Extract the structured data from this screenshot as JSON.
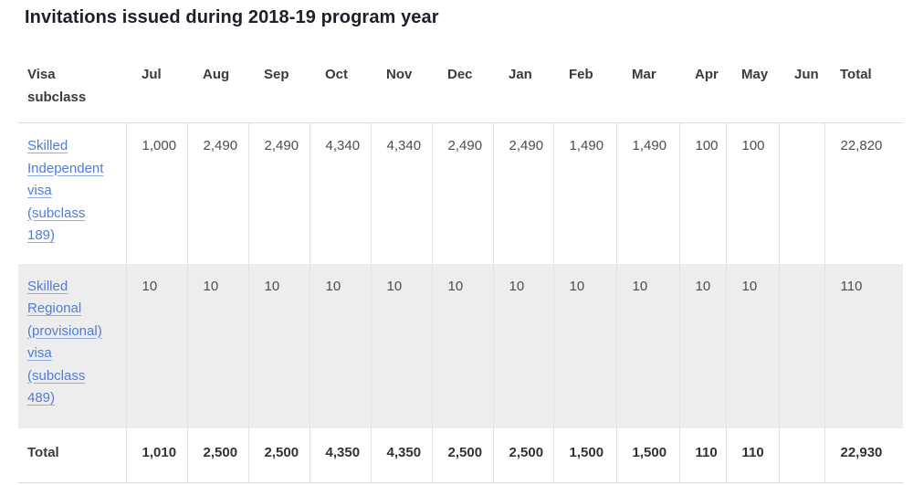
{
  "page": {
    "title": "Invitations issued during 2018-19 program year"
  },
  "colors": {
    "title_text": "#1d1f2a",
    "header_text": "#3b3b3b",
    "cell_text": "#4d4d4d",
    "link_blue": "#4e7cd9",
    "alt_row_background": "#ededed",
    "border_gray": "#dcdcdc"
  },
  "table": {
    "columns": [
      {
        "key": "visa-subclass",
        "label": "Visa subclass",
        "lines": [
          "Visa subclass"
        ]
      },
      {
        "key": "jul",
        "label": "Jul",
        "lines": [
          "Jul"
        ]
      },
      {
        "key": "aug",
        "label": "Aug",
        "lines": [
          "Aug"
        ]
      },
      {
        "key": "sep",
        "label": "Sep",
        "lines": [
          "Sep"
        ]
      },
      {
        "key": "oct",
        "label": "Oct",
        "lines": [
          "Oct"
        ]
      },
      {
        "key": "nov",
        "label": "Nov",
        "lines": [
          "Nov"
        ]
      },
      {
        "key": "dec",
        "label": "Dec",
        "lines": [
          "Dec"
        ]
      },
      {
        "key": "jan",
        "label": "Jan",
        "lines": [
          "Jan"
        ]
      },
      {
        "key": "feb",
        "label": "Feb",
        "lines": [
          "Feb"
        ]
      },
      {
        "key": "mar",
        "label": "Mar",
        "lines": [
          "Mar"
        ]
      },
      {
        "key": "apr",
        "label": "Apr",
        "lines": [
          "Apr"
        ]
      },
      {
        "key": "may",
        "label": "May",
        "lines": [
          "May"
        ]
      },
      {
        "key": "jun",
        "label": "Jun",
        "lines": [
          "Jun"
        ]
      },
      {
        "key": "total",
        "label": "Total",
        "lines": [
          "Total"
        ]
      }
    ],
    "rows": [
      {
        "label": "Skilled Independent visa (subclass 189)",
        "label_lines": [
          "Skilled",
          "Independent",
          "visa",
          "(subclass",
          "189)"
        ],
        "values": [
          "1,000",
          "2,490",
          "2,490",
          "4,340",
          "4,340",
          "2,490",
          "2,490",
          "1,490",
          "1,490",
          "100",
          "100",
          "",
          "22,820"
        ]
      },
      {
        "label": "Skilled Regional (provisional) visa (subclass 489)",
        "label_lines": [
          "Skilled",
          "Regional",
          "(provisional)",
          "visa",
          "(subclass",
          "489)"
        ],
        "values": [
          "10",
          "10",
          "10",
          "10",
          "10",
          "10",
          "10",
          "10",
          "10",
          "10",
          "10",
          "",
          "110"
        ]
      }
    ],
    "total_row": {
      "label": "Total",
      "values": [
        "1,010",
        "2,500",
        "2,500",
        "4,350",
        "4,350",
        "2,500",
        "2,500",
        "1,500",
        "1,500",
        "110",
        "110",
        "",
        "22,930"
      ]
    }
  }
}
